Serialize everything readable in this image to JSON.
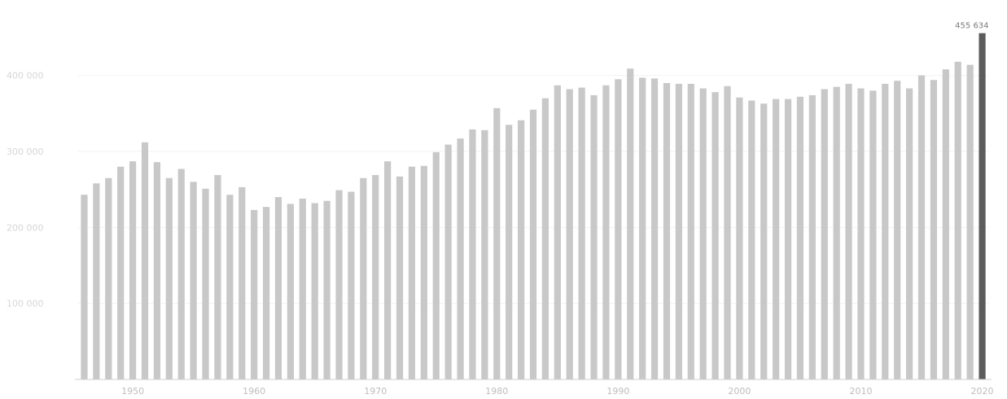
{
  "chart_data": {
    "type": "bar",
    "x": [
      1946,
      1947,
      1948,
      1949,
      1950,
      1951,
      1952,
      1953,
      1954,
      1955,
      1956,
      1957,
      1958,
      1959,
      1960,
      1961,
      1962,
      1963,
      1964,
      1965,
      1966,
      1967,
      1968,
      1969,
      1970,
      1971,
      1972,
      1973,
      1974,
      1975,
      1976,
      1977,
      1978,
      1979,
      1980,
      1981,
      1982,
      1983,
      1984,
      1985,
      1986,
      1987,
      1988,
      1989,
      1990,
      1991,
      1992,
      1993,
      1994,
      1995,
      1996,
      1997,
      1998,
      1999,
      2000,
      2001,
      2002,
      2003,
      2004,
      2005,
      2006,
      2007,
      2008,
      2009,
      2010,
      2011,
      2012,
      2013,
      2014,
      2015,
      2016,
      2017,
      2018,
      2019,
      2020
    ],
    "values": [
      243000,
      258000,
      265000,
      280000,
      287000,
      312000,
      286000,
      265000,
      277000,
      260000,
      251000,
      269000,
      243000,
      253000,
      223000,
      227000,
      240000,
      231000,
      238000,
      232000,
      235000,
      249000,
      247000,
      265000,
      269000,
      287000,
      267000,
      280000,
      281000,
      299000,
      309000,
      317000,
      329000,
      328000,
      357000,
      335000,
      341000,
      355000,
      370000,
      387000,
      382000,
      384000,
      374000,
      387000,
      395000,
      409000,
      397000,
      396000,
      390000,
      389000,
      389000,
      383000,
      378000,
      386000,
      371000,
      367000,
      363000,
      369000,
      369000,
      372000,
      374000,
      382000,
      385000,
      389000,
      383000,
      380000,
      389000,
      393000,
      383000,
      400000,
      394000,
      408000,
      418000,
      414000,
      455634
    ],
    "highlight_value_label": "455 634",
    "y_ticks": [
      "100 000",
      "200 000",
      "300 000",
      "400 000"
    ],
    "y_tick_values": [
      100000,
      200000,
      300000,
      400000
    ],
    "x_ticks": [
      "1950",
      "1960",
      "1970",
      "1980",
      "1990",
      "2000",
      "2010",
      "2020"
    ],
    "ylim": [
      0,
      480000
    ],
    "title": "",
    "xlabel": "",
    "ylabel": "",
    "grid": true,
    "colors": {
      "bar": "#c8c8c8",
      "highlight": "#5c5c5c"
    }
  }
}
